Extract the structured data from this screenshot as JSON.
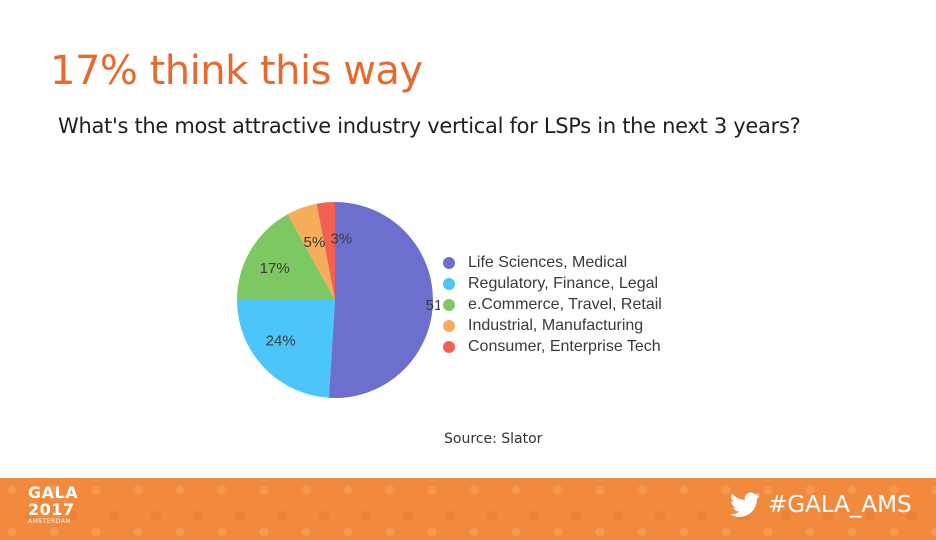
{
  "title": "17% think this way",
  "subtitle": "What's the most attractive industry vertical for LSPs in the next 3 years?",
  "source": "Source: Slator",
  "footer": {
    "logo_line1": "GALA",
    "logo_line2": "2017",
    "logo_line3": "AMSTERDAM",
    "hashtag": "#GALA_AMS",
    "hashtag_icon": "twitter-bird-icon",
    "background_color": "#f28a3e"
  },
  "chart_data": {
    "type": "pie",
    "slices": [
      {
        "name": "Life Sciences, Medical",
        "value": 51,
        "label": "51%",
        "color": "#6c6fcd"
      },
      {
        "name": "Regulatory, Finance, Legal",
        "value": 24,
        "label": "24%",
        "color": "#4cc5fa"
      },
      {
        "name": "e.Commerce, Travel, Retail",
        "value": 17,
        "label": "17%",
        "color": "#7dc863"
      },
      {
        "name": "Industrial, Manufacturing",
        "value": 5,
        "label": "5%",
        "color": "#f7ad5a"
      },
      {
        "name": "Consumer, Enterprise Tech",
        "value": 3,
        "label": "3%",
        "color": "#f26052"
      }
    ],
    "legend_position": "right"
  }
}
